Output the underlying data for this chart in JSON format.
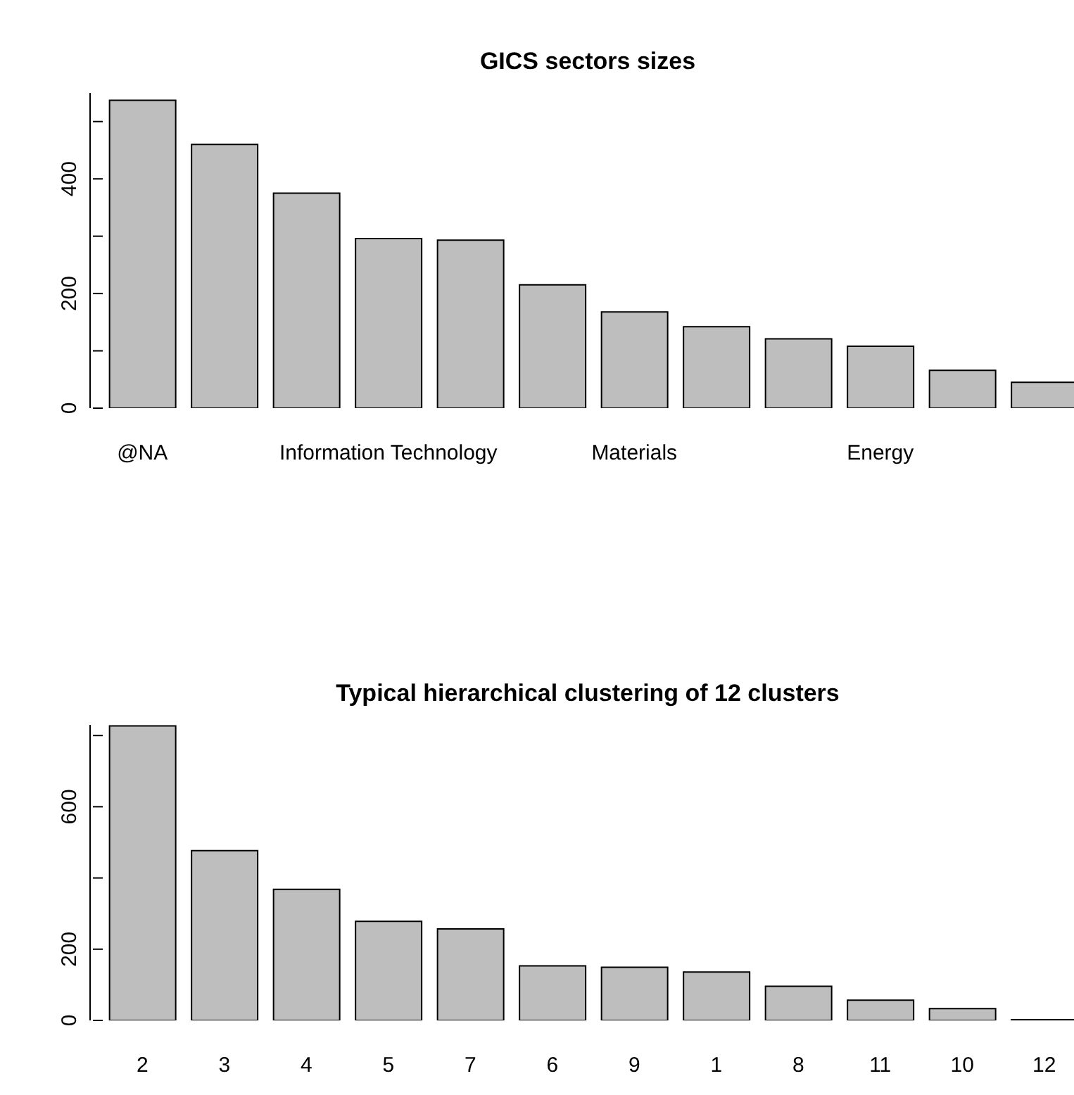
{
  "chart_data": [
    {
      "type": "bar",
      "title": "GICS sectors sizes",
      "categories": [
        "@NA",
        null,
        null,
        "Information Technology",
        null,
        null,
        "Materials",
        null,
        null,
        "Energy",
        null,
        null
      ],
      "values": [
        537,
        460,
        375,
        296,
        293,
        215,
        168,
        142,
        121,
        108,
        66,
        45
      ],
      "color": "#bebebe",
      "ylim": [
        0,
        550
      ],
      "yticks": [
        0,
        {
          "value": 100,
          "label": null
        },
        200,
        {
          "value": 300,
          "label": null
        },
        400,
        {
          "value": 500,
          "label": null
        }
      ],
      "grid": false
    },
    {
      "type": "bar",
      "title": "Typical hierarchical clustering of 12 clusters",
      "categories": [
        "2",
        "3",
        "4",
        "5",
        "7",
        "6",
        "9",
        "1",
        "8",
        "11",
        "10",
        "12"
      ],
      "values": [
        827,
        477,
        368,
        278,
        257,
        153,
        149,
        136,
        96,
        57,
        33,
        2
      ],
      "color": "#bebebe",
      "ylim": [
        0,
        830
      ],
      "yticks": [
        0,
        200,
        {
          "value": 400,
          "label": null
        },
        600,
        {
          "value": 800,
          "label": null
        }
      ],
      "grid": false
    }
  ]
}
